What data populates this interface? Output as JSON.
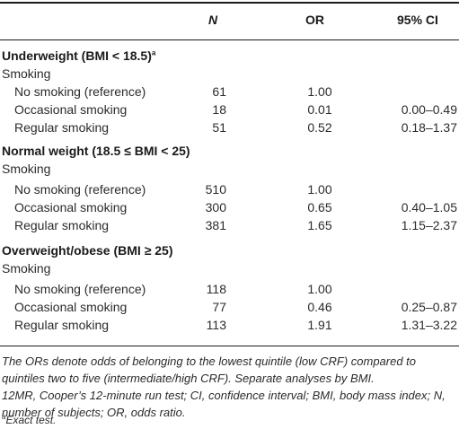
{
  "headers": {
    "label": "",
    "n": "N",
    "or": "OR",
    "ci": "95% CI"
  },
  "groups": [
    {
      "title": "Underweight (BMI < 18.5)",
      "title_sup": "a",
      "sublabel": "Smoking",
      "rows": [
        {
          "label": "No smoking (reference)",
          "n": "61",
          "or": "1.00",
          "ci": ""
        },
        {
          "label": "Occasional smoking",
          "n": "18",
          "or": "0.01",
          "ci": "0.00–0.49"
        },
        {
          "label": "Regular smoking",
          "n": "51",
          "or": "0.52",
          "ci": "0.18–1.37"
        }
      ]
    },
    {
      "title": "Normal weight (18.5 ≤ BMI < 25)",
      "title_sup": "",
      "sublabel": "Smoking",
      "rows": [
        {
          "label": "No smoking (reference)",
          "n": "510",
          "or": "1.00",
          "ci": ""
        },
        {
          "label": "Occasional smoking",
          "n": "300",
          "or": "0.65",
          "ci": "0.40–1.05"
        },
        {
          "label": "Regular smoking",
          "n": "381",
          "or": "1.65",
          "ci": "1.15–2.37"
        }
      ]
    },
    {
      "title": "Overweight/obese (BMI ≥ 25)",
      "title_sup": "",
      "sublabel": "Smoking",
      "rows": [
        {
          "label": "No smoking (reference)",
          "n": "118",
          "or": "1.00",
          "ci": ""
        },
        {
          "label": "Occasional smoking",
          "n": "77",
          "or": "0.46",
          "ci": "0.25–0.87"
        },
        {
          "label": "Regular smoking",
          "n": "113",
          "or": "1.91",
          "ci": "1.31–3.22"
        }
      ]
    }
  ],
  "footnotes": {
    "note1": "The ORs denote odds of belonging to the lowest quintile (low CRF) compared to quintiles two to five (intermediate/high CRF). Separate analyses by BMI.",
    "note2": "12MR, Cooper’s 12-minute run test; CI, confidence interval; BMI, body mass index; N, number of subjects; OR, odds ratio.",
    "note3_sup": "a",
    "note3": "Exact test."
  }
}
